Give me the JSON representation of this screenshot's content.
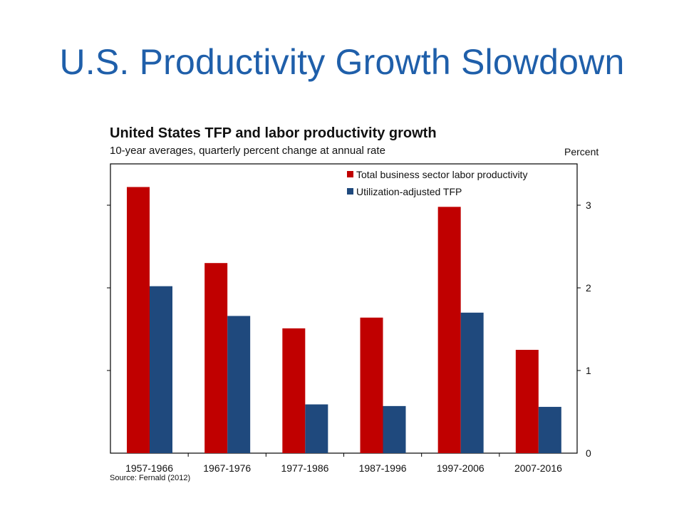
{
  "slide": {
    "title": "U.S. Productivity Growth Slowdown"
  },
  "source_note": "Source: Fernald (2012)",
  "chart_data": {
    "type": "bar",
    "title": "United States TFP and labor productivity growth",
    "subtitle": "10-year averages, quarterly percent change at annual rate",
    "ylabel": "Percent",
    "ylim": [
      0,
      3.5
    ],
    "yticks": [
      0,
      1,
      2,
      3
    ],
    "grid": false,
    "legend_position": "top-right",
    "categories": [
      "1957-1966",
      "1967-1976",
      "1977-1986",
      "1987-1996",
      "1997-2006",
      "2007-2016"
    ],
    "series": [
      {
        "name": "Total business sector labor productivity",
        "color": "#c00000",
        "values": [
          3.22,
          2.3,
          1.51,
          1.64,
          2.98,
          1.25
        ]
      },
      {
        "name": "Utilization-adjusted TFP",
        "color": "#1f497d",
        "values": [
          2.02,
          1.66,
          0.59,
          0.57,
          1.7,
          0.56
        ]
      }
    ]
  }
}
